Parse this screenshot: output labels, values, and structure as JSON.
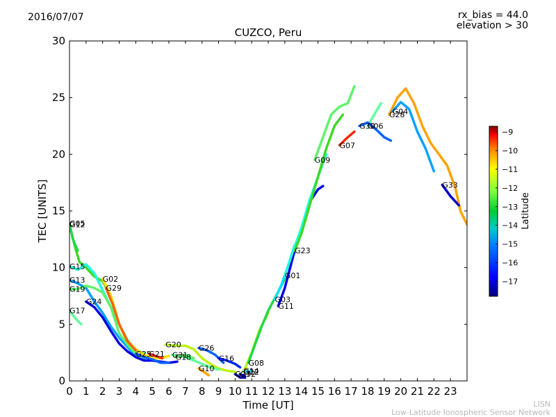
{
  "header": {
    "date": "2016/07/07",
    "rx_bias": "rx_bias = 44.0",
    "elevation": "elevation > 30"
  },
  "footer": {
    "line1": "LISN",
    "line2": "Low-Latitude Ionospheric Sensor Network"
  },
  "chart_data": {
    "type": "scatter",
    "title": "CUZCO, Peru",
    "xlabel": "Time [UT]",
    "ylabel": "TEC [UNITS]",
    "xlim": [
      0,
      24
    ],
    "ylim": [
      0,
      30
    ],
    "xticks": [
      0,
      1,
      2,
      3,
      4,
      5,
      6,
      7,
      8,
      9,
      10,
      11,
      12,
      13,
      14,
      15,
      16,
      17,
      18,
      19,
      20,
      21,
      22,
      23
    ],
    "yticks": [
      0,
      5,
      10,
      15,
      20,
      25,
      30
    ],
    "colorbar": {
      "label": "Latitude",
      "range": [
        -17.8,
        -8.7
      ],
      "ticks": [
        -9,
        -10,
        -11,
        -12,
        -13,
        -14,
        -15,
        -16,
        -17
      ],
      "colors": [
        "#00007f",
        "#0000ff",
        "#007fff",
        "#00ffff",
        "#7fff7f",
        "#00cc33",
        "#ffff00",
        "#ff7f00",
        "#ff0000",
        "#7f0000"
      ]
    },
    "series": [
      {
        "name": "G12",
        "lat": -12.5,
        "points": [
          [
            0,
            13.8
          ],
          [
            0.3,
            12
          ],
          [
            0.6,
            10.5
          ],
          [
            1,
            10
          ],
          [
            1.5,
            9.2
          ],
          [
            2,
            8.8
          ],
          [
            2.5,
            7.5
          ],
          [
            3,
            5
          ],
          [
            3.5,
            3.6
          ],
          [
            4,
            2.7
          ],
          [
            4.5,
            2.4
          ]
        ]
      },
      {
        "name": "G05",
        "lat": -13.0,
        "points": [
          [
            0,
            13.9
          ],
          [
            0.2,
            12.5
          ],
          [
            0.5,
            11.5
          ]
        ]
      },
      {
        "name": "G15",
        "lat": -14.5,
        "points": [
          [
            0,
            10.1
          ],
          [
            0.5,
            9.8
          ],
          [
            1,
            10.3
          ],
          [
            1.5,
            9.5
          ],
          [
            2,
            8
          ],
          [
            2.5,
            6.5
          ],
          [
            3,
            5
          ],
          [
            3.5,
            3.5
          ],
          [
            4,
            2.4
          ]
        ]
      },
      {
        "name": "G13",
        "lat": -15.5,
        "points": [
          [
            0,
            8.9
          ],
          [
            0.5,
            8.6
          ],
          [
            1,
            8.2
          ],
          [
            1.5,
            7
          ],
          [
            2,
            6
          ],
          [
            2.5,
            4.8
          ],
          [
            3,
            3.8
          ],
          [
            3.5,
            3
          ],
          [
            4,
            2.2
          ],
          [
            4.5,
            1.9
          ]
        ]
      },
      {
        "name": "G19",
        "lat": -13.5,
        "points": [
          [
            0,
            8.1
          ],
          [
            0.5,
            8.1
          ],
          [
            1,
            8.4
          ],
          [
            1.5,
            8.2
          ],
          [
            2,
            7.8
          ],
          [
            2.5,
            6.5
          ],
          [
            3,
            4.2
          ],
          [
            3.5,
            3.2
          ],
          [
            4,
            2.4
          ],
          [
            4.5,
            1.8
          ]
        ]
      },
      {
        "name": "G17",
        "lat": -14.0,
        "points": [
          [
            0,
            6.2
          ],
          [
            0.3,
            5.6
          ],
          [
            0.7,
            5
          ]
        ]
      },
      {
        "name": "G24",
        "lat": -17.0,
        "points": [
          [
            1,
            7
          ],
          [
            1.5,
            6.5
          ],
          [
            2,
            5.6
          ],
          [
            2.5,
            4.4
          ],
          [
            3,
            3.3
          ],
          [
            3.5,
            2.6
          ],
          [
            4,
            2.1
          ],
          [
            4.5,
            1.8
          ],
          [
            5,
            1.8
          ],
          [
            5.5,
            1.7
          ],
          [
            6,
            1.6
          ],
          [
            6.5,
            1.7
          ]
        ]
      },
      {
        "name": "G02",
        "lat": -11.5,
        "points": [
          [
            2,
            9
          ],
          [
            2.5,
            7.5
          ],
          [
            3,
            5
          ],
          [
            3.5,
            3.5
          ],
          [
            4,
            2.8
          ],
          [
            4.5,
            2.3
          ],
          [
            5,
            2
          ],
          [
            5.5,
            2
          ],
          [
            6,
            2.2
          ]
        ]
      },
      {
        "name": "G29",
        "lat": -10.5,
        "points": [
          [
            2.2,
            8.2
          ],
          [
            2.6,
            6.8
          ],
          [
            3,
            5
          ],
          [
            3.5,
            3.5
          ],
          [
            4,
            2.7
          ]
        ]
      },
      {
        "name": "G25",
        "lat": -16.0,
        "points": [
          [
            4,
            2.4
          ],
          [
            4.5,
            2.1
          ],
          [
            5,
            1.9
          ],
          [
            5.5,
            1.6
          ],
          [
            6,
            1.6
          ]
        ]
      },
      {
        "name": "G21",
        "lat": -10.0,
        "points": [
          [
            4.8,
            2.4
          ],
          [
            5.2,
            2.2
          ],
          [
            5.6,
            2
          ]
        ]
      },
      {
        "name": "G20",
        "lat": -12.0,
        "points": [
          [
            5.8,
            3.2
          ],
          [
            6.5,
            3.1
          ],
          [
            7,
            3.1
          ],
          [
            7.5,
            2.8
          ],
          [
            8,
            2
          ],
          [
            8.5,
            1.5
          ],
          [
            9,
            1.1
          ],
          [
            9.5,
            0.9
          ],
          [
            10,
            0.8
          ]
        ]
      },
      {
        "name": "G31",
        "lat": -14.0,
        "points": [
          [
            6.2,
            2.3
          ],
          [
            6.6,
            2.2
          ],
          [
            7,
            2.1
          ],
          [
            7.5,
            1.8
          ],
          [
            8,
            1.5
          ],
          [
            8.5,
            1.2
          ],
          [
            9,
            1
          ]
        ]
      },
      {
        "name": "G18",
        "lat": -13.5,
        "points": [
          [
            6.4,
            2.1
          ],
          [
            7,
            2.3
          ],
          [
            7.5,
            2
          ]
        ]
      },
      {
        "name": "G26",
        "lat": -16.0,
        "points": [
          [
            7.8,
            2.9
          ],
          [
            8.3,
            2.7
          ],
          [
            8.8,
            2.3
          ],
          [
            9.3,
            1.6
          ]
        ]
      },
      {
        "name": "G10",
        "lat": -11.0,
        "points": [
          [
            7.8,
            1.1
          ],
          [
            8.1,
            0.8
          ],
          [
            8.4,
            0.5
          ]
        ]
      },
      {
        "name": "G16",
        "lat": -16.5,
        "points": [
          [
            9,
            2
          ],
          [
            9.5,
            1.8
          ],
          [
            10,
            1.5
          ],
          [
            10.3,
            1.2
          ]
        ]
      },
      {
        "name": "G27",
        "lat": -17.5,
        "points": [
          [
            10,
            0.6
          ],
          [
            10.3,
            0.3
          ],
          [
            10.6,
            0.3
          ]
        ]
      },
      {
        "name": "G32",
        "lat": -17.0,
        "points": [
          [
            10.3,
            0.6
          ],
          [
            10.6,
            0.4
          ]
        ]
      },
      {
        "name": "G14",
        "lat": -15.0,
        "points": [
          [
            10.5,
            0.9
          ],
          [
            10.8,
            0.8
          ],
          [
            11,
            0.9
          ]
        ]
      },
      {
        "name": "G22",
        "lat": -12.0,
        "points": [
          [
            10.5,
            0.8
          ],
          [
            11,
            2.5
          ],
          [
            11.5,
            4.6
          ],
          [
            12,
            6
          ]
        ]
      },
      {
        "name": "G08",
        "lat": -13.0,
        "points": [
          [
            10.8,
            1.6
          ],
          [
            11.2,
            3.2
          ],
          [
            11.6,
            4.8
          ],
          [
            12,
            6.2
          ],
          [
            12.5,
            7.6
          ],
          [
            13,
            9
          ]
        ]
      },
      {
        "name": "G11",
        "lat": -17.0,
        "points": [
          [
            12.6,
            6.6
          ],
          [
            13,
            8.2
          ],
          [
            13.5,
            11
          ],
          [
            14,
            13.5
          ],
          [
            14.5,
            15.8
          ],
          [
            15,
            16.9
          ],
          [
            15.3,
            17.2
          ]
        ]
      },
      {
        "name": "G03",
        "lat": -15.0,
        "points": [
          [
            12.4,
            7.2
          ],
          [
            12.8,
            8.5
          ],
          [
            13.2,
            10.2
          ],
          [
            13.6,
            12
          ]
        ]
      },
      {
        "name": "G01",
        "lat": -14.5,
        "points": [
          [
            13,
            9.3
          ],
          [
            13.5,
            11.5
          ],
          [
            14,
            13.5
          ],
          [
            14.5,
            16
          ],
          [
            15,
            18
          ],
          [
            15.5,
            20
          ]
        ]
      },
      {
        "name": "G23",
        "lat": -12.5,
        "points": [
          [
            13.6,
            11.5
          ],
          [
            14,
            13
          ],
          [
            14.5,
            15.5
          ],
          [
            15,
            18
          ],
          [
            15.5,
            20.5
          ],
          [
            16,
            22.5
          ],
          [
            16.5,
            23.5
          ]
        ]
      },
      {
        "name": "G09",
        "lat": -13.5,
        "points": [
          [
            14.8,
            19.5
          ],
          [
            15.3,
            21.5
          ],
          [
            15.8,
            23.5
          ],
          [
            16.3,
            24.2
          ],
          [
            16.8,
            24.5
          ],
          [
            17.2,
            26
          ]
        ]
      },
      {
        "name": "G07",
        "lat": -10.0,
        "points": [
          [
            16.3,
            20.8
          ],
          [
            16.8,
            21.5
          ],
          [
            17.2,
            22
          ]
        ]
      },
      {
        "name": "G06",
        "lat": -14.0,
        "points": [
          [
            18,
            22.5
          ],
          [
            18.4,
            23.5
          ],
          [
            18.8,
            24.5
          ]
        ]
      },
      {
        "name": "G30",
        "lat": -16.0,
        "points": [
          [
            17.5,
            22.5
          ],
          [
            18,
            22.8
          ],
          [
            18.5,
            22.2
          ],
          [
            19,
            21.5
          ],
          [
            19.4,
            21.2
          ]
        ]
      },
      {
        "name": "G28",
        "lat": -11.0,
        "points": [
          [
            19.3,
            23.5
          ],
          [
            19.8,
            25
          ],
          [
            20.3,
            25.8
          ],
          [
            20.8,
            24.5
          ],
          [
            21.3,
            22.5
          ],
          [
            21.8,
            21
          ],
          [
            22.3,
            20
          ],
          [
            22.8,
            19
          ],
          [
            23.3,
            17
          ],
          [
            23.6,
            15
          ],
          [
            24,
            13.8
          ]
        ]
      },
      {
        "name": "G04",
        "lat": -15.5,
        "points": [
          [
            19.5,
            23.8
          ],
          [
            20,
            24.6
          ],
          [
            20.5,
            24
          ],
          [
            21,
            22
          ],
          [
            21.5,
            20.5
          ],
          [
            22,
            18.5
          ]
        ]
      },
      {
        "name": "G33",
        "lat": -17.2,
        "points": [
          [
            22.5,
            17.3
          ],
          [
            23,
            16.3
          ],
          [
            23.5,
            15.5
          ]
        ]
      }
    ]
  }
}
